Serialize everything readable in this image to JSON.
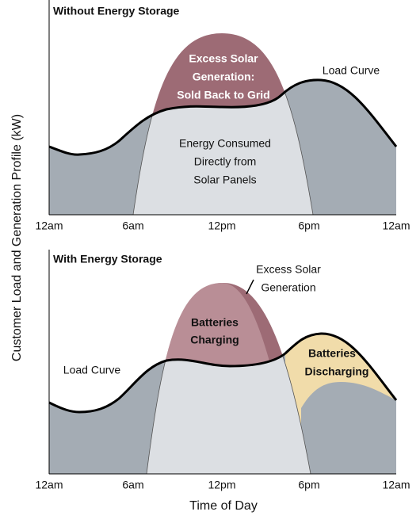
{
  "y_axis_label": "Customer Load and Generation Profile (kW)",
  "x_axis_label": "Time of Day",
  "x_ticks": [
    "12am",
    "6am",
    "12pm",
    "6pm",
    "12am"
  ],
  "top_panel": {
    "title": "Without Energy Storage",
    "excess_label": [
      "Excess Solar",
      "Generation:",
      "Sold Back to Grid"
    ],
    "consumed_label": [
      "Energy Consumed",
      "Directly from",
      "Solar Panels"
    ],
    "load_label": "Load Curve"
  },
  "bottom_panel": {
    "title": "With Energy Storage",
    "excess_label": [
      "Excess Solar",
      "Generation"
    ],
    "charging_label": [
      "Batteries",
      "Charging"
    ],
    "discharging_label": [
      "Batteries",
      "Discharging"
    ],
    "load_label": "Load Curve"
  }
}
